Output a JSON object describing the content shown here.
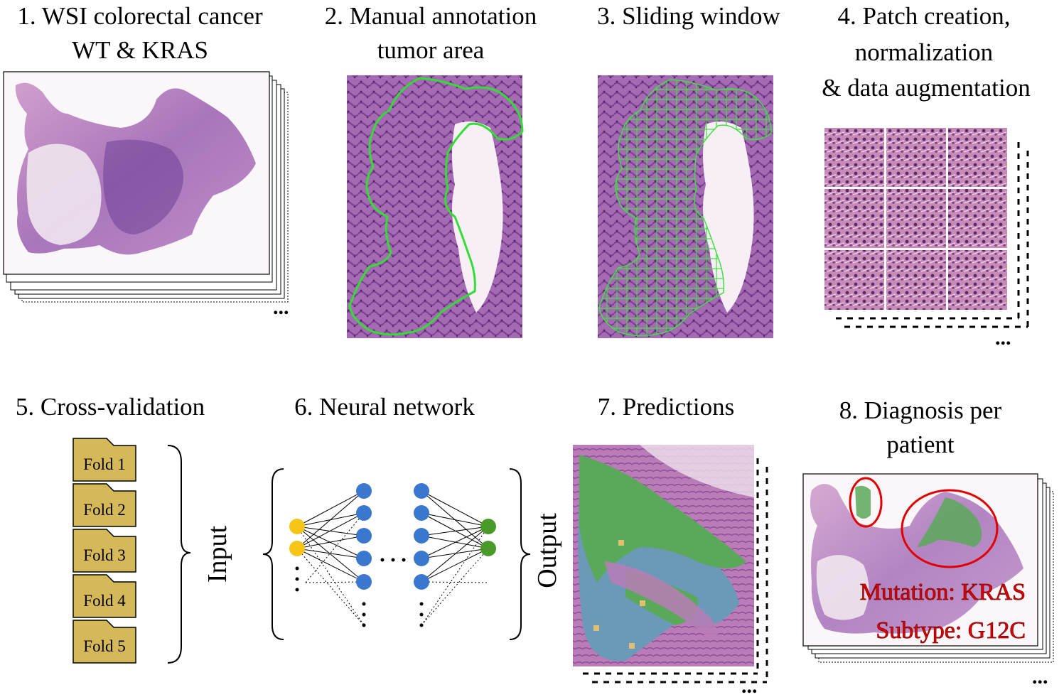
{
  "steps": {
    "s1": {
      "line1": "1. WSI colorectal cancer",
      "line2": "WT & KRAS"
    },
    "s2": {
      "line1": "2. Manual annotation",
      "line2": "tumor area"
    },
    "s3": {
      "line1": "3. Sliding window"
    },
    "s4": {
      "line1": "4. Patch creation,",
      "line2": "normalization",
      "line3": "& data augmentation"
    },
    "s5": {
      "line1": "5. Cross-validation"
    },
    "s6": {
      "line1": "6. Neural network"
    },
    "s7": {
      "line1": "7. Predictions"
    },
    "s8": {
      "line1": "8. Diagnosis per",
      "line2": "patient"
    }
  },
  "folds": [
    "Fold 1",
    "Fold 2",
    "Fold 3",
    "Fold 4",
    "Fold 5"
  ],
  "network": {
    "input_label": "Input",
    "output_label": "Output",
    "ellipsis": "..."
  },
  "diagnosis": {
    "mutation": "Mutation: KRAS",
    "subtype": "Subtype: G12C"
  },
  "colors": {
    "tissue_pink": "#d9a3cf",
    "tissue_purple": "#8a4fa3",
    "annotation_green": "#33dd33",
    "fold_fill": "#d4b85a",
    "input_node": "#f5c518",
    "hidden_node": "#3a78d0",
    "output_node": "#4a9a2a",
    "pred_green": "#5aa85a",
    "pred_blue": "#6a9ab8",
    "pred_yellow": "#e0c070",
    "result_red": "#e00000"
  }
}
